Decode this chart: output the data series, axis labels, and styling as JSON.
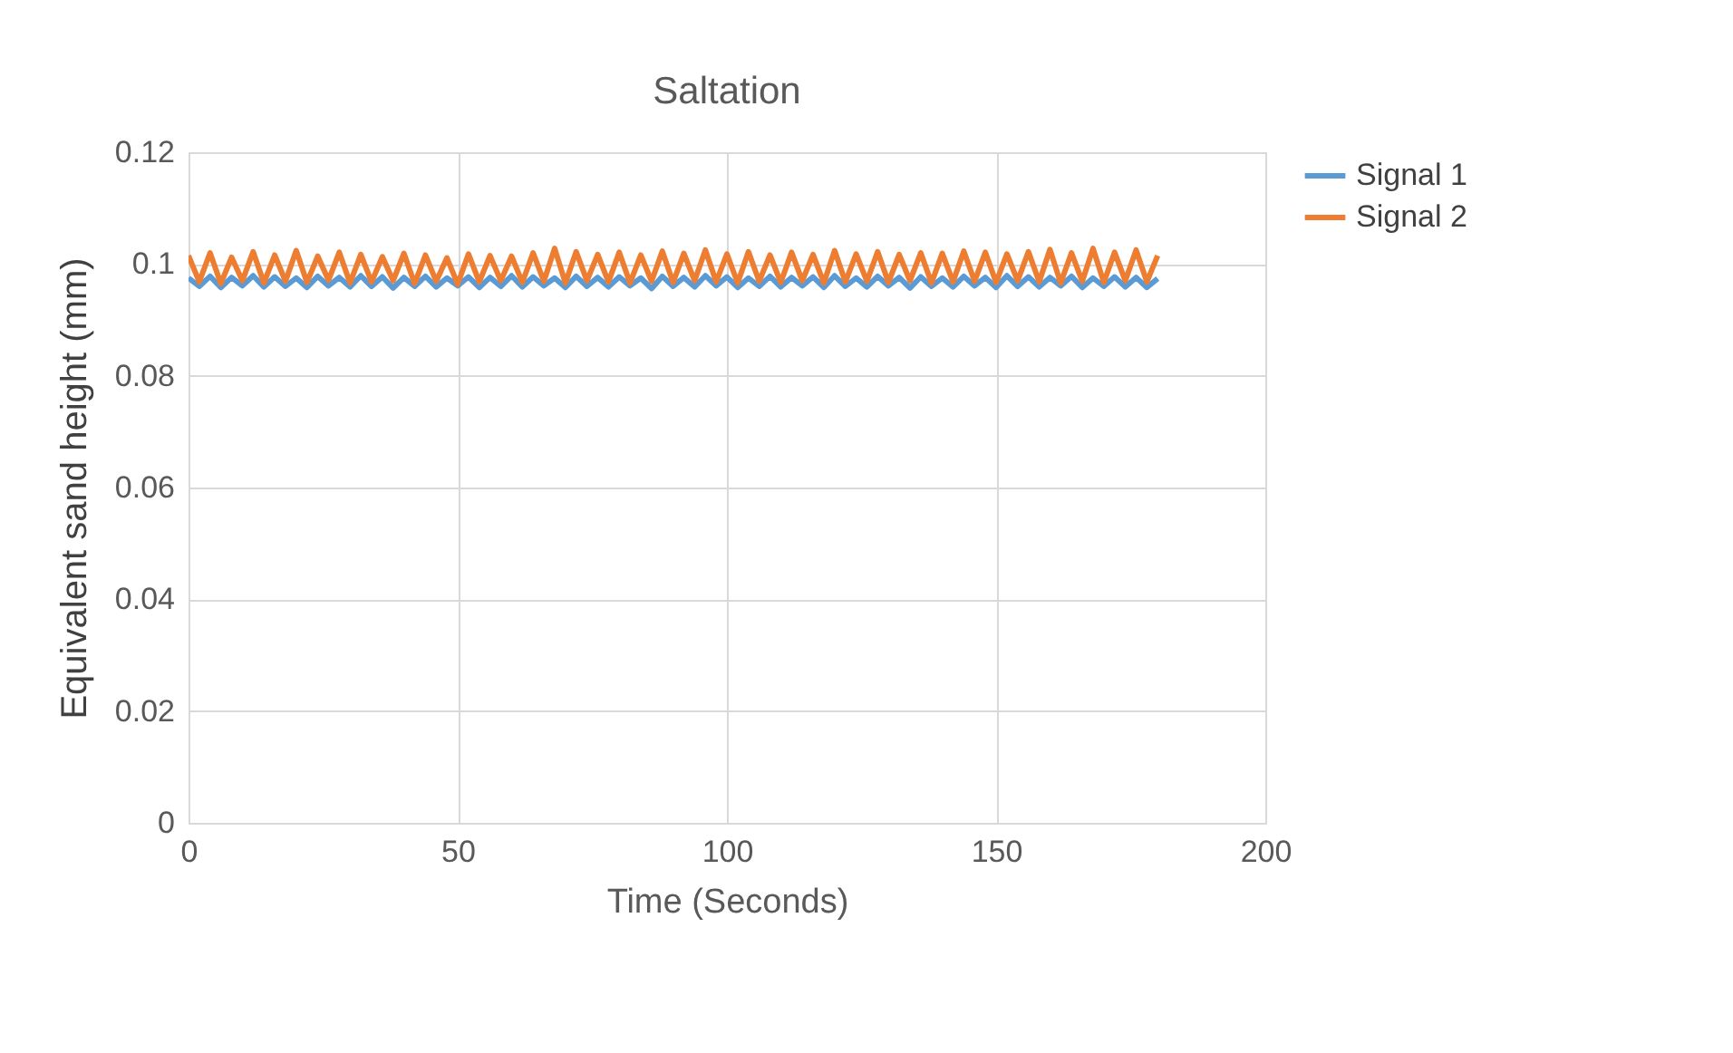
{
  "chart_data": {
    "type": "line",
    "title": "Saltation",
    "xlabel": "Time (Seconds)",
    "ylabel": "Equivalent sand height  (mm)",
    "x": [
      0,
      2,
      4,
      6,
      8,
      10,
      12,
      14,
      16,
      18,
      20,
      22,
      24,
      26,
      28,
      30,
      32,
      34,
      36,
      38,
      40,
      42,
      44,
      46,
      48,
      50,
      52,
      54,
      56,
      58,
      60,
      62,
      64,
      66,
      68,
      70,
      72,
      74,
      76,
      78,
      80,
      82,
      84,
      86,
      88,
      90,
      92,
      94,
      96,
      98,
      100,
      102,
      104,
      106,
      108,
      110,
      112,
      114,
      116,
      118,
      120,
      122,
      124,
      126,
      128,
      130,
      132,
      134,
      136,
      138,
      140,
      142,
      144,
      146,
      148,
      150,
      152,
      154,
      156,
      158,
      160,
      162,
      164,
      166,
      168,
      170,
      172,
      174,
      176,
      178,
      180
    ],
    "series": [
      {
        "name": "Signal 1",
        "color": "#5b9bd5",
        "values": [
          0.0975,
          0.096,
          0.0978,
          0.0958,
          0.0976,
          0.0961,
          0.0979,
          0.0959,
          0.0977,
          0.096,
          0.0975,
          0.0958,
          0.0978,
          0.0961,
          0.0976,
          0.0959,
          0.0979,
          0.096,
          0.0977,
          0.0957,
          0.0976,
          0.096,
          0.0978,
          0.0959,
          0.0975,
          0.0961,
          0.0977,
          0.0958,
          0.0976,
          0.096,
          0.0979,
          0.0959,
          0.0977,
          0.0961,
          0.0975,
          0.0958,
          0.0978,
          0.096,
          0.0976,
          0.0959,
          0.0977,
          0.0961,
          0.0975,
          0.0956,
          0.0978,
          0.096,
          0.0976,
          0.0959,
          0.0979,
          0.0961,
          0.0977,
          0.0958,
          0.0975,
          0.096,
          0.0978,
          0.0959,
          0.0976,
          0.0961,
          0.0977,
          0.0958,
          0.0979,
          0.096,
          0.0975,
          0.0959,
          0.0978,
          0.0961,
          0.0976,
          0.0957,
          0.0977,
          0.096,
          0.0975,
          0.0959,
          0.0978,
          0.0961,
          0.0976,
          0.0958,
          0.0979,
          0.096,
          0.0977,
          0.0959,
          0.0976,
          0.0961,
          0.0978,
          0.0958,
          0.0975,
          0.096,
          0.0977,
          0.0959,
          0.0976,
          0.0958,
          0.0974
        ]
      },
      {
        "name": "Signal 2",
        "color": "#ed7d31",
        "values": [
          0.1015,
          0.0968,
          0.102,
          0.0965,
          0.1012,
          0.097,
          0.1022,
          0.0966,
          0.1016,
          0.0969,
          0.1024,
          0.0967,
          0.1014,
          0.0971,
          0.1021,
          0.0966,
          0.1017,
          0.0968,
          0.1013,
          0.097,
          0.1019,
          0.0965,
          0.1016,
          0.0969,
          0.1011,
          0.0964,
          0.1018,
          0.0968,
          0.1015,
          0.097,
          0.1014,
          0.0967,
          0.102,
          0.0969,
          0.1028,
          0.0966,
          0.1022,
          0.097,
          0.1017,
          0.0968,
          0.1021,
          0.0966,
          0.1016,
          0.0969,
          0.1023,
          0.0967,
          0.1019,
          0.097,
          0.1025,
          0.0968,
          0.1018,
          0.0966,
          0.1022,
          0.0969,
          0.1016,
          0.0967,
          0.1021,
          0.097,
          0.1017,
          0.0966,
          0.1024,
          0.0968,
          0.1018,
          0.0969,
          0.1022,
          0.0967,
          0.1017,
          0.097,
          0.102,
          0.0966,
          0.1019,
          0.0968,
          0.1023,
          0.0969,
          0.1021,
          0.0967,
          0.1018,
          0.097,
          0.1022,
          0.0968,
          0.1026,
          0.0966,
          0.102,
          0.0969,
          0.1028,
          0.0967,
          0.1021,
          0.097,
          0.1025,
          0.0968,
          0.1015
        ]
      }
    ],
    "xlim": [
      0,
      200
    ],
    "xticks": [
      0,
      50,
      100,
      150,
      200
    ],
    "ylim": [
      0,
      0.12
    ],
    "yticks": [
      0,
      0.02,
      0.04,
      0.06,
      0.08,
      0.1,
      0.12
    ],
    "grid": true,
    "legend": "right",
    "marker": "none",
    "line_style": "solid"
  }
}
